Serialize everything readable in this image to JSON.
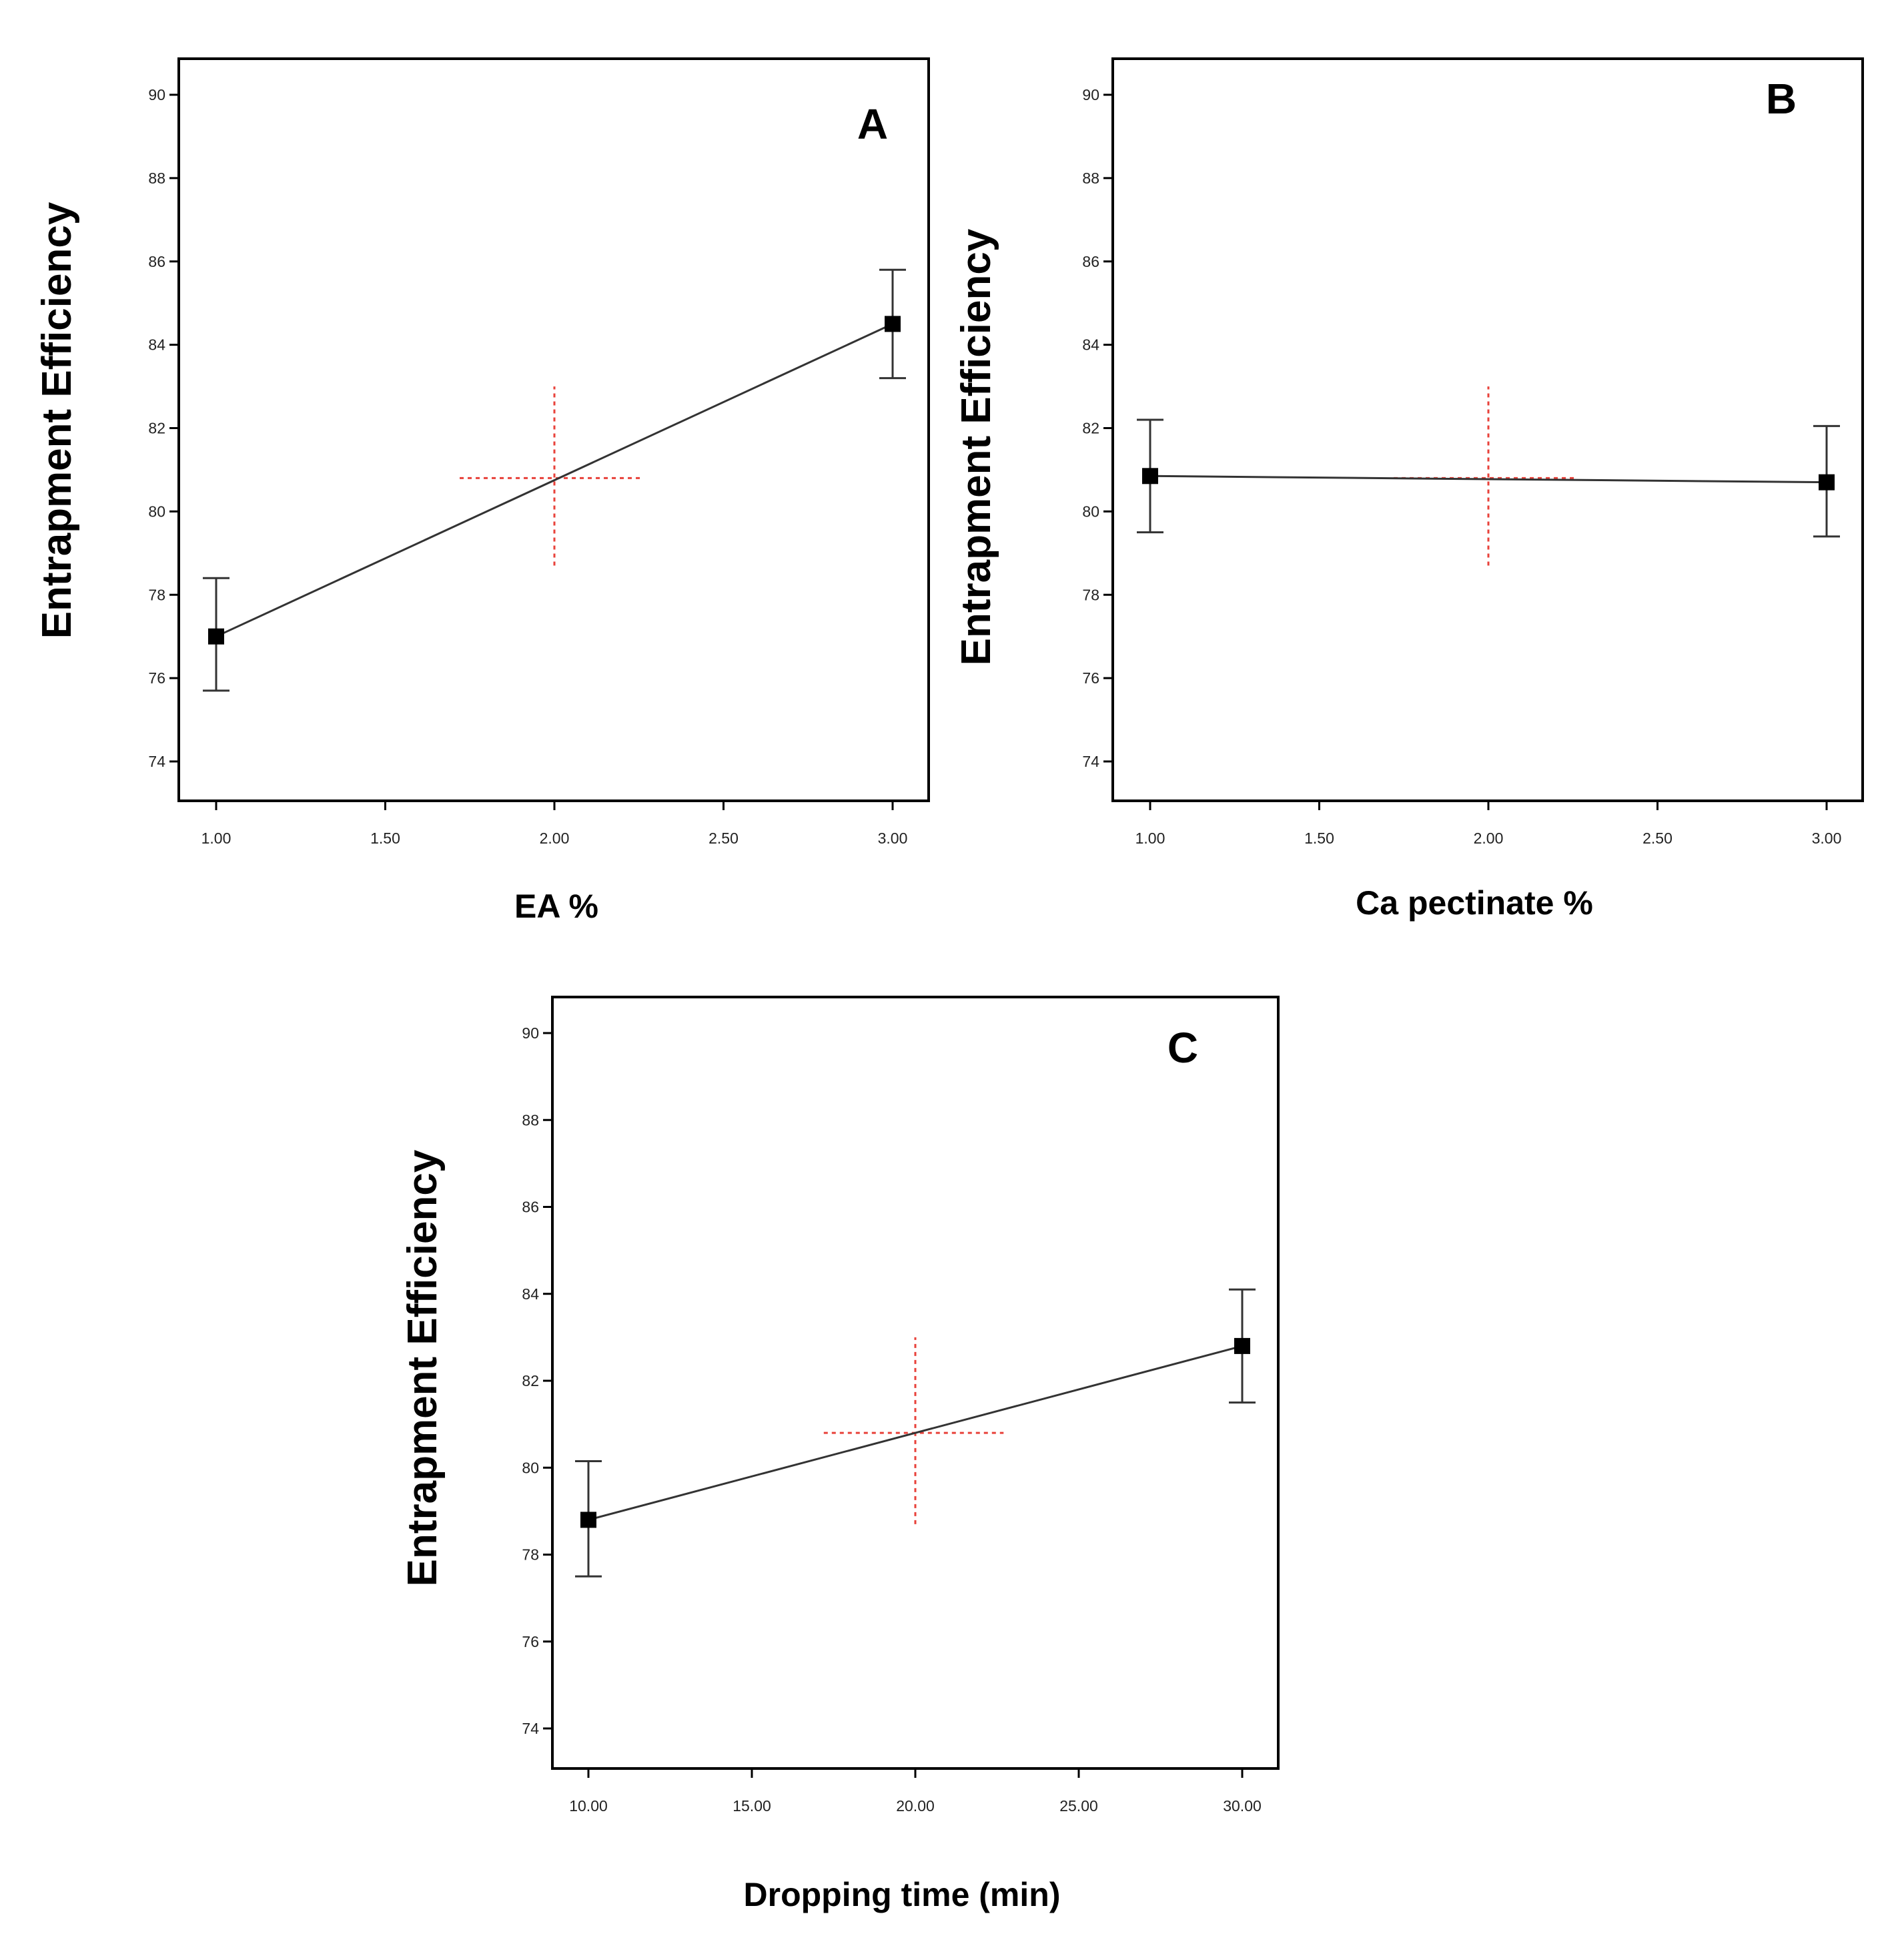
{
  "chart_data": [
    {
      "type": "line",
      "panel": "A",
      "title": "",
      "xlabel": "EA %",
      "ylabel": "Entrapment  Efficiency",
      "x_ticks": [
        "1.00",
        "1.50",
        "2.00",
        "2.50",
        "3.00"
      ],
      "y_ticks": [
        "74",
        "76",
        "78",
        "80",
        "82",
        "84",
        "86",
        "88",
        "90"
      ],
      "xlim": [
        1.0,
        3.0
      ],
      "ylim": [
        73,
        91
      ],
      "series": [
        {
          "name": "Entrapment Efficiency",
          "x": [
            1.0,
            3.0
          ],
          "y": [
            77.0,
            84.5
          ],
          "error_low": [
            75.7,
            83.2
          ],
          "error_high": [
            78.4,
            85.8
          ]
        }
      ],
      "center_point": {
        "x": 2.0,
        "y": 80.8,
        "x_range": [
          1.72,
          2.26
        ],
        "y_range": [
          78.7,
          83.0
        ]
      }
    },
    {
      "type": "line",
      "panel": "B",
      "title": "",
      "xlabel": "Ca pectinate %",
      "ylabel": "Entrapment  Efficiency",
      "x_ticks": [
        "1.00",
        "1.50",
        "2.00",
        "2.50",
        "3.00"
      ],
      "y_ticks": [
        "74",
        "76",
        "78",
        "80",
        "82",
        "84",
        "86",
        "88",
        "90"
      ],
      "xlim": [
        1.0,
        3.0
      ],
      "ylim": [
        73,
        91
      ],
      "series": [
        {
          "name": "Entrapment Efficiency",
          "x": [
            1.0,
            3.0
          ],
          "y": [
            80.85,
            80.7
          ],
          "error_low": [
            79.5,
            79.4
          ],
          "error_high": [
            82.2,
            82.05
          ]
        }
      ],
      "center_point": {
        "x": 2.0,
        "y": 80.8,
        "x_range": [
          1.72,
          2.26
        ],
        "y_range": [
          78.7,
          83.0
        ]
      }
    },
    {
      "type": "line",
      "panel": "C",
      "title": "",
      "xlabel": "Dropping time (min)",
      "ylabel": "Entrapment  Efficiency",
      "x_ticks": [
        "10.00",
        "15.00",
        "20.00",
        "25.00",
        "30.00"
      ],
      "y_ticks": [
        "74",
        "76",
        "78",
        "80",
        "82",
        "84",
        "86",
        "88",
        "90"
      ],
      "xlim": [
        10.0,
        30.0
      ],
      "ylim": [
        73,
        91
      ],
      "series": [
        {
          "name": "Entrapment Efficiency",
          "x": [
            10.0,
            30.0
          ],
          "y": [
            78.8,
            82.8
          ],
          "error_low": [
            77.5,
            81.5
          ],
          "error_high": [
            80.15,
            84.1
          ]
        }
      ],
      "center_point": {
        "x": 20.0,
        "y": 80.8,
        "x_range": [
          17.2,
          22.7
        ],
        "y_range": [
          78.7,
          83.0
        ]
      }
    }
  ]
}
